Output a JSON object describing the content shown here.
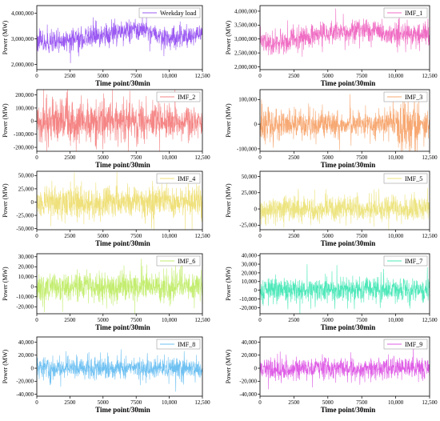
{
  "chart_data": [
    {
      "type": "line",
      "series": [
        {
          "name": "Weekday load",
          "color": "#9b59f2",
          "base": 3000000,
          "amp": 230000,
          "trend": "weekday"
        }
      ],
      "xlabel": "Time point/30min",
      "ylabel": "Power (MW)",
      "xlim": [
        0,
        12500
      ],
      "ylim": [
        1800000,
        4300000
      ],
      "yticks": [
        2000000,
        3000000,
        4000000
      ],
      "yticklabels": [
        "2,000,000",
        "3,000,000",
        "4,000,000"
      ],
      "xticks": [
        0,
        2500,
        5000,
        7500,
        10000,
        12500
      ],
      "xticklabels": [
        "0",
        "2500",
        "5000",
        "7500",
        "10,000",
        "12,500"
      ]
    },
    {
      "type": "line",
      "series": [
        {
          "name": "IMF_1",
          "color": "#f06dc4",
          "base": 3000000,
          "amp": 220000,
          "trend": "imf1"
        }
      ],
      "xlabel": "Time point/30min",
      "ylabel": "Power (MW)",
      "xlim": [
        0,
        12500
      ],
      "ylim": [
        1900000,
        4200000
      ],
      "yticks": [
        2000000,
        2500000,
        3000000,
        3500000,
        4000000
      ],
      "yticklabels": [
        "2,000,000",
        "2,500,000",
        "3,000,000",
        "3,500,000",
        "4,000,000"
      ],
      "xticks": [
        0,
        2500,
        5000,
        7500,
        10000,
        12500
      ],
      "xticklabels": [
        "0",
        "2500",
        "5000",
        "7500",
        "10,000",
        "12,500"
      ]
    },
    {
      "type": "line",
      "series": [
        {
          "name": "IMF_2",
          "color": "#f58585",
          "base": 0,
          "amp": 70000,
          "trend": "decay"
        }
      ],
      "xlabel": "Time point/30min",
      "ylabel": "Power (MW)",
      "xlim": [
        0,
        12500
      ],
      "ylim": [
        -230000,
        240000
      ],
      "yticks": [
        -200000,
        -100000,
        0,
        100000,
        200000
      ],
      "yticklabels": [
        "-200,000",
        "-100,000",
        "0",
        "100,000",
        "200,000"
      ],
      "xticks": [
        0,
        2500,
        5000,
        7500,
        10000,
        12500
      ],
      "xticklabels": [
        "0",
        "2500",
        "5000",
        "7500",
        "10,000",
        "12,500"
      ]
    },
    {
      "type": "line",
      "series": [
        {
          "name": "IMF_3",
          "color": "#f7a872",
          "base": 0,
          "amp": 32000,
          "trend": "imf3"
        }
      ],
      "xlabel": "Time point/30min",
      "ylabel": "Power (MW)",
      "xlim": [
        0,
        12500
      ],
      "ylim": [
        -110000,
        140000
      ],
      "yticks": [
        -100000,
        0,
        100000
      ],
      "yticklabels": [
        "-100,000",
        "0",
        "100,000"
      ],
      "xticks": [
        0,
        2500,
        5000,
        7500,
        10000,
        12500
      ],
      "xticklabels": [
        "0",
        "2500",
        "5000",
        "7500",
        "10,000",
        "12,500"
      ]
    },
    {
      "type": "line",
      "series": [
        {
          "name": "IMF_4",
          "color": "#efe07a",
          "base": 0,
          "amp": 16000,
          "trend": "flat"
        }
      ],
      "xlabel": "Time point/30min",
      "ylabel": "Power (MW)",
      "xlim": [
        0,
        12500
      ],
      "ylim": [
        -52000,
        58000
      ],
      "yticks": [
        -50000,
        -25000,
        0,
        25000,
        50000
      ],
      "yticklabels": [
        "-50,000",
        "-25,000",
        "0",
        "25,000",
        "50,000"
      ],
      "xticks": [
        0,
        2500,
        5000,
        7500,
        10000,
        12500
      ],
      "xticklabels": [
        "0",
        "2500",
        "5000",
        "7500",
        "10,000",
        "12,500"
      ]
    },
    {
      "type": "line",
      "series": [
        {
          "name": "IMF_5",
          "color": "#ede480",
          "base": 0,
          "amp": 11000,
          "trend": "flat"
        }
      ],
      "xlabel": "Time point/30min",
      "ylabel": "Power (MW)",
      "xlim": [
        0,
        12500
      ],
      "ylim": [
        -32000,
        58000
      ],
      "yticks": [
        -25000,
        0,
        25000,
        50000
      ],
      "yticklabels": [
        "-25,000",
        "0",
        "25,000",
        "50,000"
      ],
      "xticks": [
        0,
        2500,
        5000,
        7500,
        10000,
        12500
      ],
      "xticklabels": [
        "0",
        "2500",
        "5000",
        "7500",
        "10,000",
        "12,500"
      ]
    },
    {
      "type": "line",
      "series": [
        {
          "name": "IMF_6",
          "color": "#c3ed6f",
          "base": 0,
          "amp": 8000,
          "trend": "flat"
        }
      ],
      "xlabel": "Time point/30min",
      "ylabel": "Power (MW)",
      "xlim": [
        0,
        12500
      ],
      "ylim": [
        -27000,
        33000
      ],
      "yticks": [
        -20000,
        -10000,
        0,
        10000,
        20000,
        30000
      ],
      "yticklabels": [
        "-20,000",
        "-10,000",
        "0",
        "10,000",
        "20,000",
        "30,000"
      ],
      "xticks": [
        0,
        2500,
        5000,
        7500,
        10000,
        12500
      ],
      "xticklabels": [
        "0",
        "2500",
        "5000",
        "7500",
        "10,000",
        "12,500"
      ]
    },
    {
      "type": "line",
      "series": [
        {
          "name": "IMF_7",
          "color": "#4ee8b9",
          "base": 0,
          "amp": 8000,
          "trend": "flat"
        }
      ],
      "xlabel": "Time point/30min",
      "ylabel": "Power (MW)",
      "xlim": [
        0,
        12500
      ],
      "ylim": [
        -27000,
        42000
      ],
      "yticks": [
        -20000,
        -10000,
        0,
        10000,
        20000,
        30000,
        40000
      ],
      "yticklabels": [
        "-20,000",
        "-10,000",
        "0",
        "10,000",
        "20,000",
        "30,000",
        "40,000"
      ],
      "xticks": [
        0,
        2500,
        5000,
        7500,
        10000,
        12500
      ],
      "xticklabels": [
        "0",
        "2500",
        "5000",
        "7500",
        "10,000",
        "12,500"
      ]
    },
    {
      "type": "line",
      "series": [
        {
          "name": "IMF_8",
          "color": "#6fc1f2",
          "base": 0,
          "amp": 8500,
          "trend": "flat"
        }
      ],
      "xlabel": "Time point/30min",
      "ylabel": "Power (MW)",
      "xlim": [
        0,
        12500
      ],
      "ylim": [
        -43000,
        48000
      ],
      "yticks": [
        -40000,
        -20000,
        0,
        20000,
        40000
      ],
      "yticklabels": [
        "-40,000",
        "-20,000",
        "0",
        "20,000",
        "40,000"
      ],
      "xticks": [
        0,
        2500,
        5000,
        7500,
        10000,
        12500
      ],
      "xticklabels": [
        "0",
        "2500",
        "5000",
        "7500",
        "10,000",
        "12,500"
      ]
    },
    {
      "type": "line",
      "series": [
        {
          "name": "IMF_9",
          "color": "#df5ee6",
          "base": 0,
          "amp": 9000,
          "trend": "flat"
        }
      ],
      "xlabel": "Time point/30min",
      "ylabel": "Power (MW)",
      "xlim": [
        0,
        12500
      ],
      "ylim": [
        -43000,
        48000
      ],
      "yticks": [
        -40000,
        -20000,
        0,
        20000,
        40000
      ],
      "yticklabels": [
        "-40,000",
        "-20,000",
        "0",
        "20,000",
        "40,000"
      ],
      "xticks": [
        0,
        2500,
        5000,
        7500,
        10000,
        12500
      ],
      "xticklabels": [
        "0",
        "2500",
        "5000",
        "7500",
        "10,000",
        "12,500"
      ]
    }
  ]
}
